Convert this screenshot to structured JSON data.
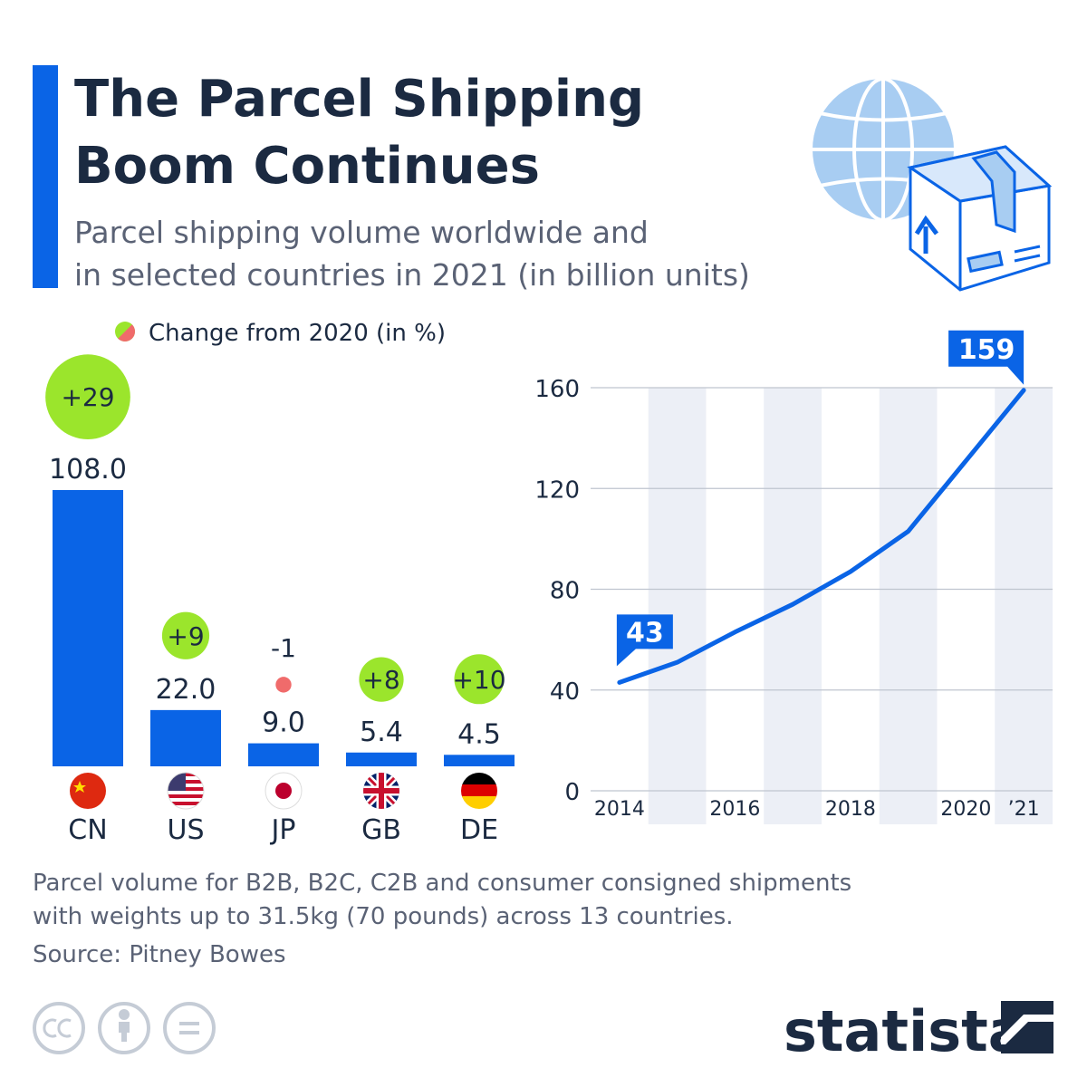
{
  "title": [
    "The Parcel Shipping",
    "Boom Continues"
  ],
  "subtitle": [
    "Parcel shipping volume worldwide and",
    "in selected countries in 2021 (in billion units)"
  ],
  "chart_data": [
    {
      "type": "bar",
      "categories": [
        "CN",
        "US",
        "JP",
        "GB",
        "DE"
      ],
      "values": [
        108.0,
        22.0,
        9.0,
        5.4,
        4.5
      ],
      "value_labels": [
        "108.0",
        "22.0",
        "9.0",
        "5.4",
        "4.5"
      ],
      "color": "#0a64e6",
      "change": {
        "label": "Change from 2020 (in %)",
        "values": [
          29,
          9,
          -1,
          8,
          10
        ],
        "value_labels": [
          "+29",
          "+9",
          "-1",
          "+8",
          "+10"
        ],
        "color_up": "#9be52c",
        "color_down": "#f06b6b"
      }
    },
    {
      "type": "line",
      "x": [
        2014,
        2015,
        2016,
        2017,
        2018,
        2019,
        2020,
        2021
      ],
      "values": [
        43,
        51,
        63,
        74,
        87,
        103,
        131,
        159
      ],
      "color": "#0a64e6",
      "xlim": [
        2013.5,
        2021.5
      ],
      "xticks": [
        2014,
        2016,
        2018,
        2020,
        {
          "value": 2021,
          "label": "’21"
        }
      ],
      "ylim": [
        0,
        160
      ],
      "yticks": [
        0,
        40,
        80,
        120,
        160
      ],
      "grid": true
    }
  ],
  "footnote": [
    "Parcel volume for B2B, B2C, C2B and consumer consigned shipments",
    "with weights up to 31.5kg (70 pounds) across 13 countries."
  ],
  "source": "Source: Pitney Bowes",
  "brand": "statista"
}
